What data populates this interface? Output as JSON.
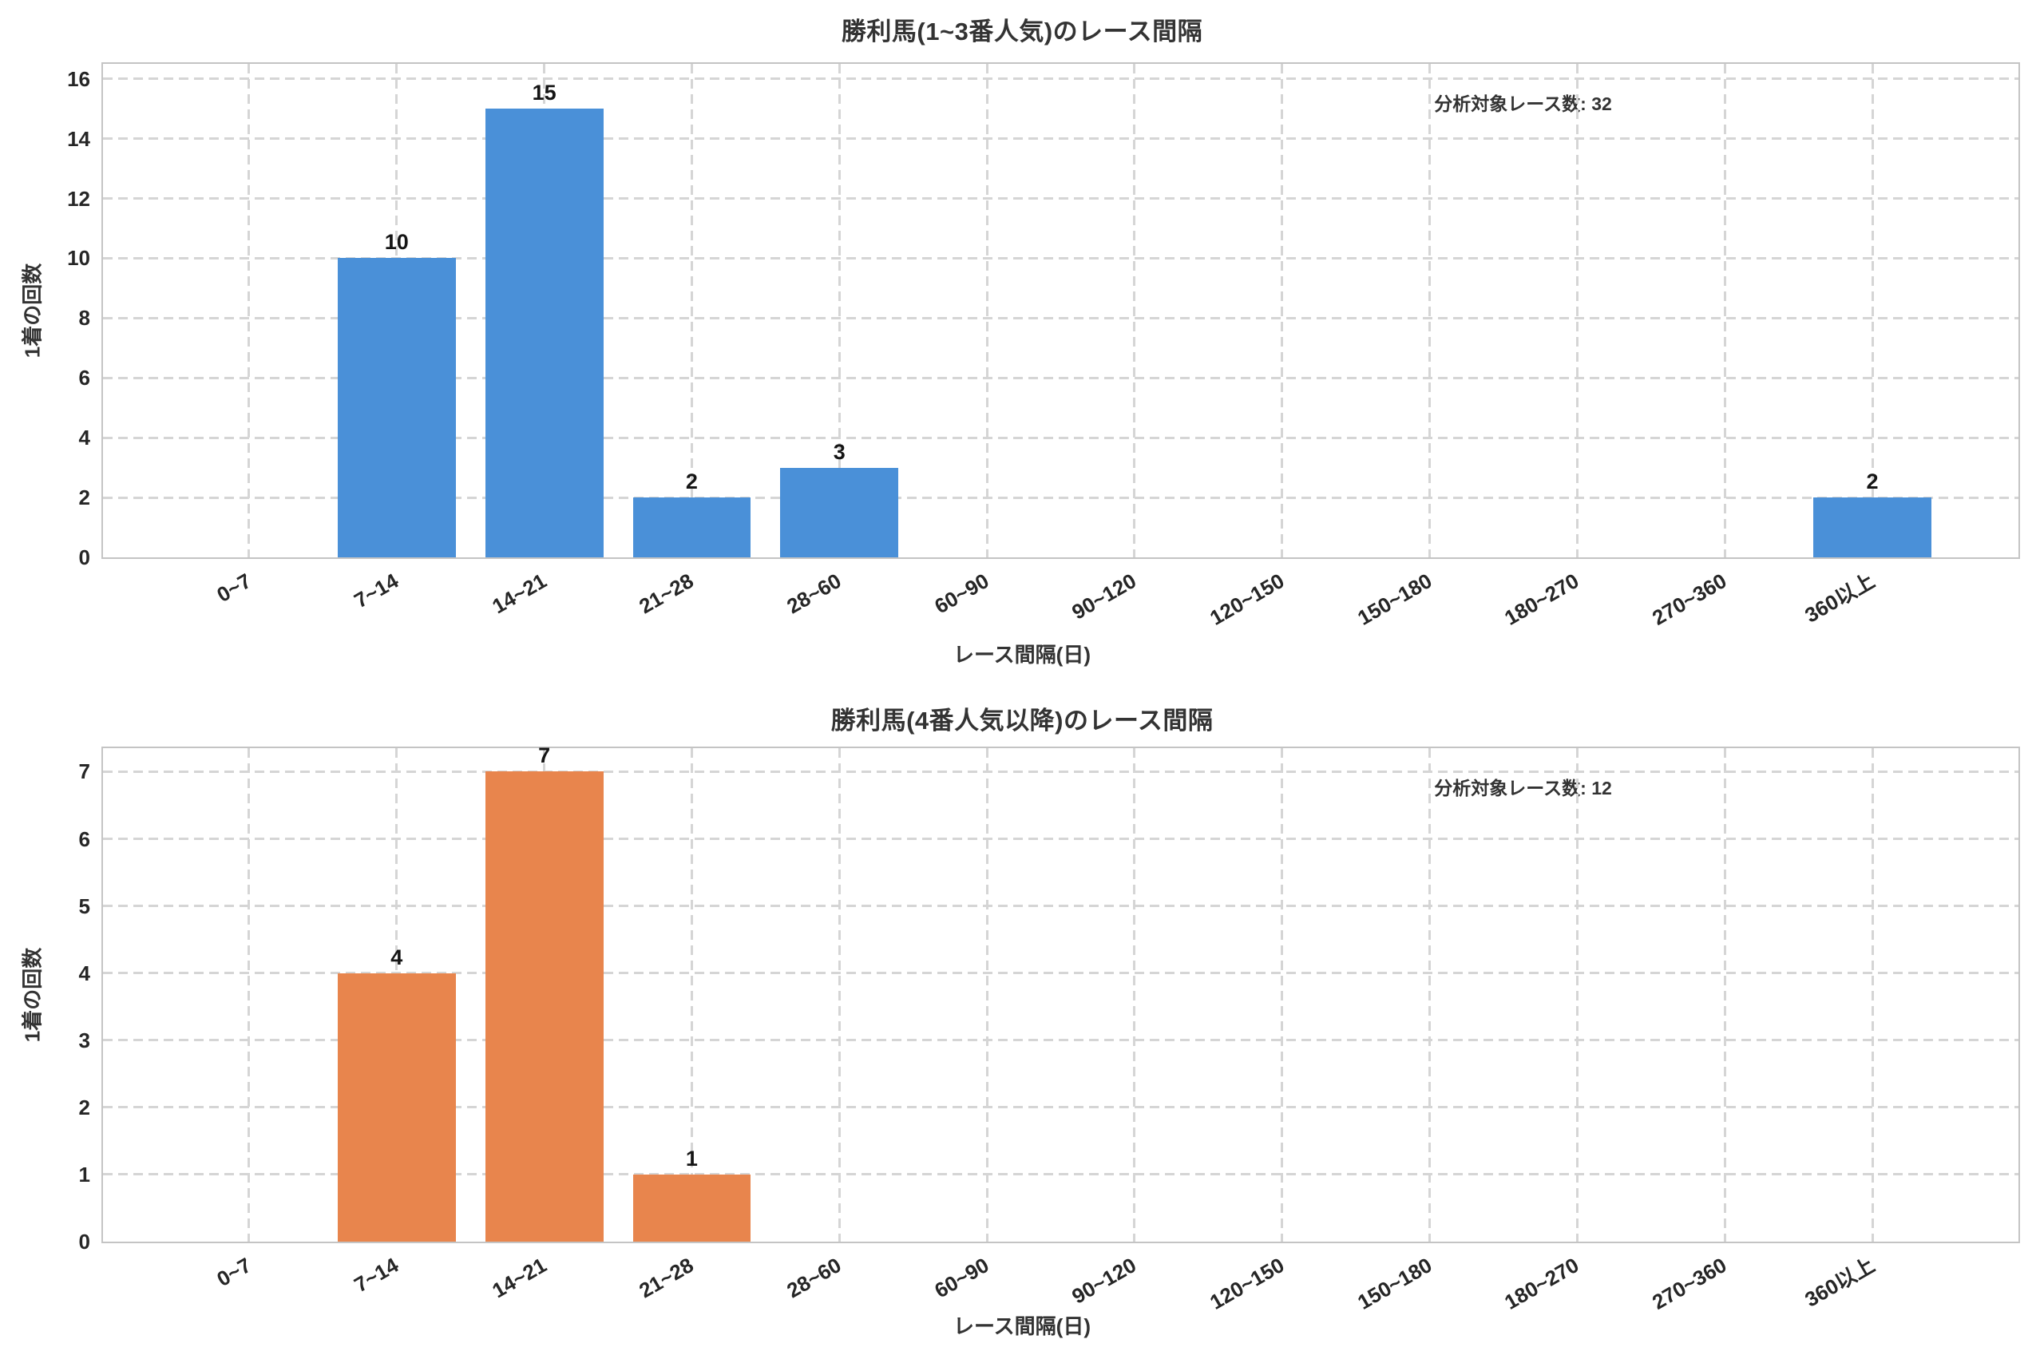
{
  "page": {
    "background": "#ffffff"
  },
  "chart_data": [
    {
      "type": "bar",
      "title": "勝利馬(1~3番人気)のレース間隔",
      "xlabel": "レース間隔(日)",
      "ylabel": "1着の回数",
      "annotation": "分析対象レース数: 32",
      "categories": [
        "0~7",
        "7~14",
        "14~21",
        "21~28",
        "28~60",
        "60~90",
        "90~120",
        "120~150",
        "150~180",
        "180~270",
        "270~360",
        "360以上"
      ],
      "values": [
        0,
        10,
        15,
        2,
        3,
        0,
        0,
        0,
        0,
        0,
        0,
        2
      ],
      "bar_color": "#4a90d8",
      "ylim": [
        0,
        16.5
      ],
      "ytick_interval": 2,
      "ytick_max": 16,
      "grid": "dashed",
      "legend": "none"
    },
    {
      "type": "bar",
      "title": "勝利馬(4番人気以降)のレース間隔",
      "xlabel": "レース間隔(日)",
      "ylabel": "1着の回数",
      "annotation": "分析対象レース数: 12",
      "categories": [
        "0~7",
        "7~14",
        "14~21",
        "21~28",
        "28~60",
        "60~90",
        "90~120",
        "120~150",
        "150~180",
        "180~270",
        "270~360",
        "360以上"
      ],
      "values": [
        0,
        4,
        7,
        1,
        0,
        0,
        0,
        0,
        0,
        0,
        0,
        0
      ],
      "bar_color": "#e8854d",
      "ylim": [
        0,
        7.35
      ],
      "ytick_interval": 1,
      "ytick_max": 7,
      "grid": "dashed",
      "legend": "none"
    }
  ]
}
